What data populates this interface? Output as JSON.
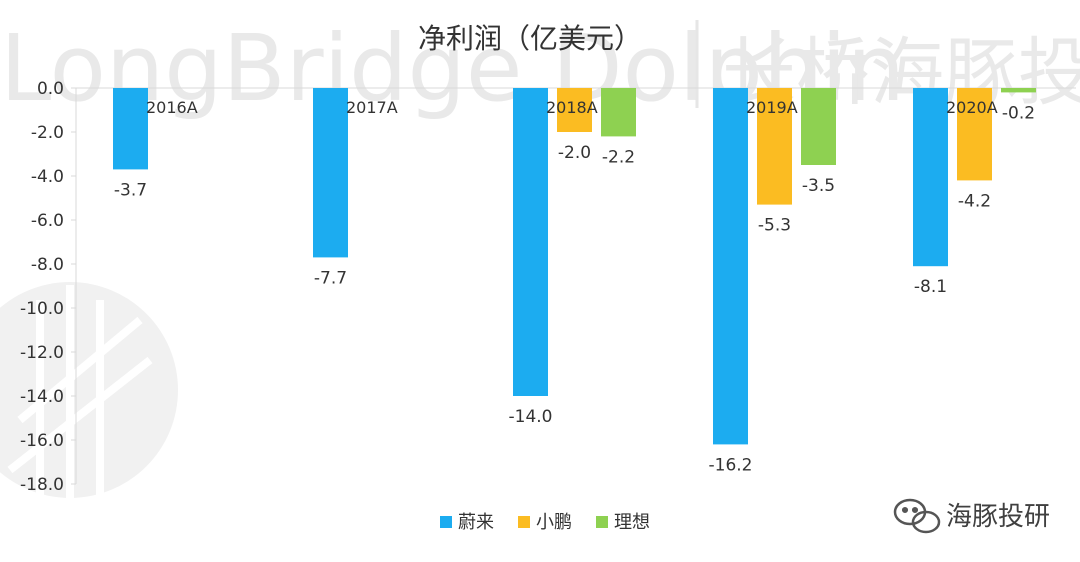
{
  "watermark": {
    "latin": "LongBridge Dolphin",
    "cjk": "长桥海豚投研"
  },
  "brand": {
    "label": "海豚投研",
    "icon": "wechat-icon"
  },
  "chart_data": {
    "type": "bar",
    "title": "净利润（亿美元）",
    "categories": [
      "2016A",
      "2017A",
      "2018A",
      "2019A",
      "2020A"
    ],
    "ylim": [
      -18,
      0
    ],
    "yticks": [
      "0.0",
      "-2.0",
      "-4.0",
      "-6.0",
      "-8.0",
      "-10.0",
      "-12.0",
      "-14.0",
      "-16.0",
      "-18.0"
    ],
    "grid": false,
    "legend_position": "bottom",
    "series": [
      {
        "name": "蔚来",
        "color": "#1cacf0",
        "values": [
          -3.7,
          -7.7,
          -14.0,
          -16.2,
          -8.1
        ],
        "labels": [
          "-3.7",
          "-7.7",
          "-14.0",
          "-16.2",
          "-8.1"
        ]
      },
      {
        "name": "小鹏",
        "color": "#fbbc22",
        "values": [
          null,
          null,
          -2.0,
          -5.3,
          -4.2
        ],
        "labels": [
          "",
          "",
          "-2.0",
          "-5.3",
          "-4.2"
        ]
      },
      {
        "name": "理想",
        "color": "#8ed151",
        "values": [
          null,
          null,
          -2.2,
          -3.5,
          -0.2
        ],
        "labels": [
          "",
          "",
          "-2.2",
          "-3.5",
          "-0.2"
        ]
      }
    ]
  }
}
